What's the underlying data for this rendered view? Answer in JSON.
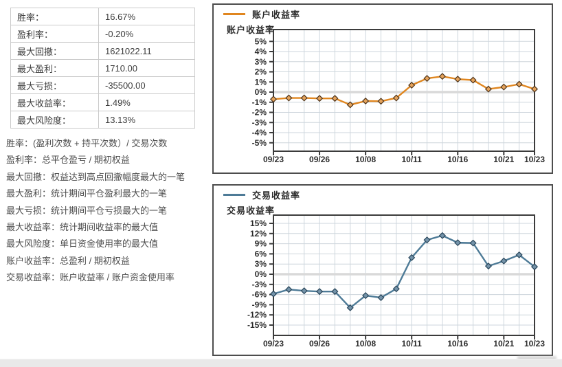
{
  "stats_table": {
    "rows": [
      {
        "label": "胜率：",
        "value": "16.67%"
      },
      {
        "label": "盈利率：",
        "value": "-0.20%"
      },
      {
        "label": "最大回撤：",
        "value": "1621022.11"
      },
      {
        "label": "最大盈利：",
        "value": "1710.00"
      },
      {
        "label": "最大亏损：",
        "value": "-35500.00"
      },
      {
        "label": "最大收益率：",
        "value": "1.49%"
      },
      {
        "label": "最大风险度：",
        "value": "13.13%"
      }
    ]
  },
  "definitions": [
    "胜率：(盈利次数 + 持平次数）/ 交易次数",
    "盈利率：总平仓盈亏 / 期初权益",
    "最大回撤：权益达到高点回撤幅度最大的一笔",
    "最大盈利：统计期间平仓盈利最大的一笔",
    "最大亏损：统计期间平仓亏损最大的一笔",
    "最大收益率：统计期间收益率的最大值",
    "最大风险度：单日资金使用率的最大值",
    "账户收益率：总盈利 / 期初权益",
    "交易收益率：账户收益率 / 账户资金使用率"
  ],
  "colors": {
    "account_line": "#E0861F",
    "account_marker_fill": "#E5A35C",
    "account_marker_stroke": "#4D3319",
    "trade_line": "#4E7B97",
    "trade_marker_fill": "#7493A9",
    "trade_marker_stroke": "#28455A",
    "gridline": "#CDD5DC",
    "zero_line": "#D9D9D9",
    "plot_border": "#3B3B3B",
    "box_border": "#4D4D4D",
    "tick_text": "#2B2B2B"
  },
  "chart_data": [
    {
      "type": "line",
      "title": "账户收益率",
      "legend": "账户收益率",
      "ylabel": "账户收益率",
      "x_tick_labels": [
        "09/23",
        "09/26",
        "10/08",
        "10/11",
        "10/16",
        "10/21",
        "10/23"
      ],
      "x_tick_indices": [
        0,
        3,
        6,
        9,
        12,
        15,
        17
      ],
      "values": [
        -0.7,
        -0.58,
        -0.58,
        -0.62,
        -0.62,
        -1.25,
        -0.88,
        -0.9,
        -0.58,
        0.68,
        1.35,
        1.55,
        1.28,
        1.18,
        0.3,
        0.5,
        0.78,
        0.3
      ],
      "y_ticks": [
        5,
        4,
        3,
        2,
        1,
        0,
        -1,
        -2,
        -3,
        -4,
        -5
      ],
      "y_tick_suffix": "%",
      "ylim": [
        -5.8,
        6.2
      ],
      "grid": true,
      "legend_position": "top-left",
      "line_color": "#E0861F",
      "marker_fill": "#E5A35C",
      "marker_stroke": "#4D3319"
    },
    {
      "type": "line",
      "title": "交易收益率",
      "legend": "交易收益率",
      "ylabel": "交易收益率",
      "x_tick_labels": [
        "09/23",
        "09/26",
        "10/08",
        "10/11",
        "10/16",
        "10/21",
        "10/23"
      ],
      "x_tick_indices": [
        0,
        3,
        6,
        9,
        12,
        15,
        17
      ],
      "values": [
        -5.8,
        -4.5,
        -4.9,
        -5.1,
        -5.1,
        -9.9,
        -6.3,
        -6.9,
        -4.3,
        4.9,
        10.1,
        11.4,
        9.3,
        9.2,
        2.4,
        3.9,
        5.7,
        2.2
      ],
      "y_ticks": [
        15,
        12,
        9,
        6,
        3,
        0,
        -3,
        -6,
        -9,
        -12,
        -15
      ],
      "y_tick_suffix": "%",
      "ylim": [
        -18.0,
        17.4
      ],
      "grid": true,
      "legend_position": "top-left",
      "line_color": "#4E7B97",
      "marker_fill": "#7493A9",
      "marker_stroke": "#28455A"
    }
  ]
}
